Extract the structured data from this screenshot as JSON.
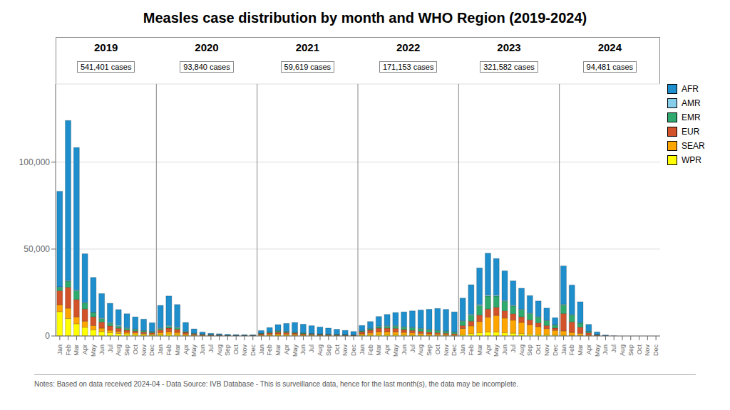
{
  "chart_data": {
    "type": "bar",
    "stacked": true,
    "grid": true,
    "legend": "right",
    "title": "Measles case distribution by month and WHO Region (2019-2024)",
    "subtitle": "Notes: Based on data received 2024-04 - Data Source: IVB Database - This is surveillance data, hence for the last month(s), the data may be incomplete.",
    "annotations": [
      {
        "label": "2019",
        "text": "541,401 cases"
      },
      {
        "label": "2020",
        "text": "93,840 cases"
      },
      {
        "label": "2021",
        "text": "59,619 cases"
      },
      {
        "label": "2022",
        "text": "171,153 cases"
      },
      {
        "label": "2023",
        "text": "321,582 cases"
      },
      {
        "label": "2024",
        "text": "94,481 cases"
      }
    ],
    "categories": [
      "Jan",
      "Feb",
      "Mar",
      "Apr",
      "May",
      "Jun",
      "Jul",
      "Aug",
      "Sep",
      "Oct",
      "Nov",
      "Dec",
      "Jan",
      "Feb",
      "Mar",
      "Apr",
      "May",
      "Jun",
      "Jul",
      "Aug",
      "Sep",
      "Oct",
      "Nov",
      "Dec",
      "Jan",
      "Feb",
      "Mar",
      "Apr",
      "May",
      "Jun",
      "Jul",
      "Aug",
      "Sep",
      "Oct",
      "Nov",
      "Dec",
      "Jan",
      "Feb",
      "Mar",
      "Apr",
      "May",
      "Jun",
      "Jul",
      "Aug",
      "Sep",
      "Oct",
      "Nov",
      "Dec",
      "Jan",
      "Feb",
      "Mar",
      "Apr",
      "May",
      "Jun",
      "Jul",
      "Aug",
      "Sep",
      "Oct",
      "Nov",
      "Dec",
      "Jan",
      "Feb",
      "Mar",
      "Apr",
      "May",
      "Jun",
      "Jul",
      "Aug",
      "Sep",
      "Oct",
      "Nov",
      "Dec"
    ],
    "ylim": [
      0,
      145000
    ],
    "yticks": [
      0,
      {
        "value": 50000,
        "label": "50,000"
      },
      {
        "value": 100000,
        "label": "100,000"
      }
    ],
    "series": [
      {
        "name": "WPR",
        "color": "#FFFF00",
        "values": [
          14000,
          10000,
          7000,
          5000,
          3500,
          2500,
          1800,
          1400,
          1100,
          900,
          700,
          550,
          800,
          1000,
          700,
          400,
          250,
          150,
          120,
          80,
          80,
          60,
          50,
          40,
          250,
          320,
          400,
          360,
          320,
          280,
          240,
          200,
          160,
          140,
          120,
          100,
          400,
          560,
          750,
          750,
          650,
          570,
          490,
          410,
          330,
          290,
          250,
          200,
          800,
          1300,
          1800,
          2300,
          2300,
          1800,
          1600,
          1300,
          1000,
          850,
          700,
          500,
          400,
          320,
          240,
          80,
          25,
          8,
          0,
          0,
          0,
          0,
          0,
          0
        ]
      },
      {
        "name": "SEAR",
        "color": "#FFA500",
        "values": [
          4000,
          6000,
          4000,
          3500,
          2500,
          2000,
          1500,
          1200,
          1000,
          900,
          700,
          600,
          1200,
          1500,
          1300,
          700,
          400,
          300,
          200,
          150,
          100,
          80,
          80,
          80,
          400,
          600,
          800,
          700,
          600,
          500,
          400,
          320,
          280,
          240,
          200,
          160,
          800,
          1200,
          1700,
          1700,
          1700,
          1500,
          1300,
          1100,
          900,
          750,
          650,
          560,
          3500,
          4500,
          6500,
          8500,
          9500,
          8500,
          7500,
          6500,
          5500,
          4500,
          3500,
          2700,
          2500,
          1700,
          1300,
          420,
          130,
          25,
          0,
          0,
          0,
          0,
          0,
          0
        ]
      },
      {
        "name": "EUR",
        "color": "#D2522A",
        "values": [
          8000,
          12000,
          10000,
          7000,
          5000,
          3500,
          2500,
          1800,
          1300,
          1000,
          900,
          700,
          1500,
          2000,
          1800,
          900,
          500,
          300,
          200,
          150,
          100,
          80,
          80,
          80,
          600,
          800,
          1000,
          900,
          700,
          500,
          400,
          320,
          280,
          240,
          200,
          160,
          1200,
          1600,
          2000,
          2000,
          2000,
          1600,
          1400,
          1200,
          1000,
          800,
          650,
          560,
          1700,
          2700,
          3700,
          4700,
          4700,
          4200,
          3700,
          3200,
          2700,
          2200,
          1800,
          1300,
          10000,
          6000,
          3500,
          1300,
          420,
          80,
          0,
          0,
          0,
          0,
          0,
          0
        ]
      },
      {
        "name": "EMR",
        "color": "#2EAA6E",
        "values": [
          2000,
          3500,
          5000,
          3500,
          2500,
          2000,
          1500,
          1200,
          1000,
          900,
          700,
          600,
          800,
          1000,
          900,
          500,
          300,
          200,
          150,
          150,
          100,
          80,
          80,
          80,
          300,
          500,
          700,
          600,
          500,
          400,
          300,
          280,
          240,
          200,
          160,
          120,
          500,
          700,
          900,
          1100,
          1300,
          1400,
          1500,
          1500,
          1400,
          1300,
          1100,
          900,
          2500,
          3500,
          5500,
          7500,
          6500,
          5500,
          4500,
          4100,
          3700,
          3300,
          2800,
          1800,
          5000,
          4000,
          2400,
          800,
          240,
          40,
          0,
          0,
          0,
          0,
          0,
          0
        ]
      },
      {
        "name": "AMR",
        "color": "#87CEEB",
        "values": [
          300,
          500,
          400,
          300,
          200,
          400,
          500,
          600,
          400,
          300,
          200,
          150,
          300,
          500,
          400,
          250,
          150,
          150,
          150,
          150,
          100,
          80,
          80,
          80,
          80,
          120,
          160,
          160,
          160,
          120,
          80,
          80,
          80,
          60,
          50,
          40,
          150,
          250,
          350,
          350,
          350,
          300,
          250,
          250,
          250,
          200,
          160,
          160,
          300,
          500,
          650,
          650,
          570,
          490,
          410,
          370,
          330,
          290,
          250,
          200,
          400,
          320,
          240,
          80,
          40,
          8,
          0,
          0,
          0,
          0,
          0,
          0
        ]
      },
      {
        "name": "AFR",
        "color": "#1E8FCC",
        "values": [
          55000,
          92000,
          82000,
          28000,
          20000,
          14000,
          11000,
          9000,
          8000,
          7000,
          6500,
          5000,
          13000,
          17000,
          13000,
          5000,
          2500,
          1200,
          700,
          600,
          500,
          400,
          350,
          300,
          1500,
          2500,
          3500,
          4500,
          5500,
          5000,
          4500,
          4000,
          3500,
          3000,
          2500,
          2000,
          3000,
          4000,
          5500,
          6500,
          7500,
          8500,
          9500,
          10500,
          11500,
          12500,
          12500,
          11500,
          13000,
          17000,
          21000,
          24000,
          21000,
          17000,
          14000,
          12000,
          10000,
          9000,
          7000,
          4000,
          22000,
          17000,
          12000,
          4000,
          1500,
          400,
          80,
          0,
          0,
          0,
          0,
          0
        ]
      }
    ]
  }
}
